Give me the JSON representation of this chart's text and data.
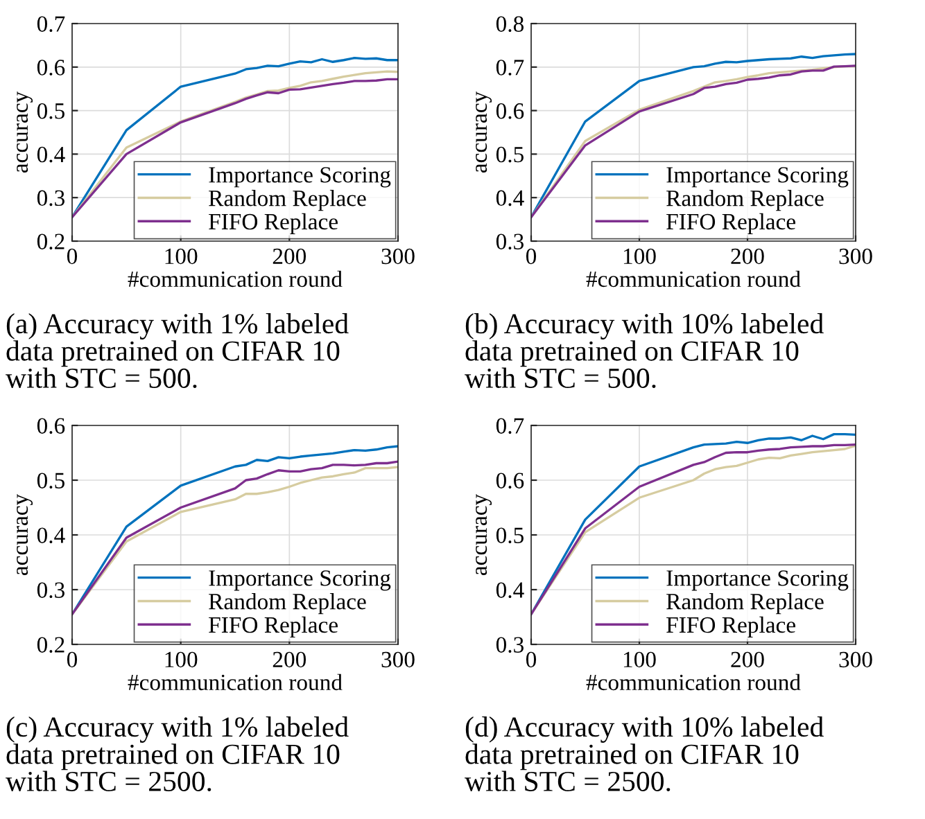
{
  "chart_data": [
    {
      "type": "line",
      "xlabel": "#communication round",
      "ylabel": "accuracy",
      "xlim": [
        0,
        300
      ],
      "ylim": [
        0.2,
        0.7
      ],
      "xticks": [
        0,
        100,
        200,
        300
      ],
      "yticks": [
        0.2,
        0.3,
        0.4,
        0.5,
        0.6,
        0.7
      ],
      "grid": true,
      "legend": "bottom right",
      "annotations": [
        "(a) Accuracy with 1% labeled\ndata pretrained on CIFAR 10\nwith STC = 500."
      ],
      "x": [
        0,
        50,
        100,
        150,
        160,
        170,
        180,
        190,
        200,
        210,
        220,
        230,
        240,
        250,
        260,
        270,
        280,
        290,
        300
      ],
      "series": [
        {
          "name": "Importance Scoring",
          "color": "#0072bd",
          "values": [
            0.255,
            0.455,
            0.555,
            0.585,
            0.595,
            0.598,
            0.603,
            0.602,
            0.608,
            0.613,
            0.611,
            0.618,
            0.612,
            0.616,
            0.621,
            0.619,
            0.62,
            0.616,
            0.616
          ]
        },
        {
          "name": "Random Replace",
          "color": "#d6cca0",
          "values": [
            0.255,
            0.415,
            0.475,
            0.52,
            0.53,
            0.537,
            0.545,
            0.546,
            0.552,
            0.557,
            0.565,
            0.568,
            0.573,
            0.578,
            0.582,
            0.586,
            0.588,
            0.59,
            0.589
          ]
        },
        {
          "name": "FIFO Replace",
          "color": "#7e2f8e",
          "values": [
            0.255,
            0.4,
            0.473,
            0.517,
            0.527,
            0.535,
            0.542,
            0.54,
            0.548,
            0.549,
            0.553,
            0.557,
            0.561,
            0.564,
            0.568,
            0.568,
            0.569,
            0.572,
            0.572
          ]
        }
      ]
    },
    {
      "type": "line",
      "xlabel": "#communication round",
      "ylabel": "accuracy",
      "xlim": [
        0,
        300
      ],
      "ylim": [
        0.3,
        0.8
      ],
      "xticks": [
        0,
        100,
        200,
        300
      ],
      "yticks": [
        0.3,
        0.4,
        0.5,
        0.6,
        0.7,
        0.8
      ],
      "grid": true,
      "legend": "bottom right",
      "annotations": [
        "(b) Accuracy with 10% labeled\ndata pretrained on CIFAR 10\nwith STC = 500."
      ],
      "x": [
        0,
        50,
        100,
        150,
        160,
        170,
        180,
        190,
        200,
        210,
        220,
        230,
        240,
        250,
        260,
        270,
        280,
        290,
        300
      ],
      "series": [
        {
          "name": "Importance Scoring",
          "color": "#0072bd",
          "values": [
            0.355,
            0.575,
            0.668,
            0.7,
            0.702,
            0.708,
            0.712,
            0.711,
            0.714,
            0.716,
            0.718,
            0.719,
            0.72,
            0.724,
            0.721,
            0.725,
            0.727,
            0.729,
            0.73
          ]
        },
        {
          "name": "Random Replace",
          "color": "#d6cca0",
          "values": [
            0.355,
            0.53,
            0.602,
            0.645,
            0.655,
            0.665,
            0.668,
            0.672,
            0.677,
            0.681,
            0.686,
            0.688,
            0.69,
            0.692,
            0.694,
            0.697,
            0.7,
            0.702,
            0.702
          ]
        },
        {
          "name": "FIFO Replace",
          "color": "#7e2f8e",
          "values": [
            0.355,
            0.52,
            0.598,
            0.638,
            0.652,
            0.655,
            0.661,
            0.664,
            0.671,
            0.673,
            0.676,
            0.681,
            0.683,
            0.69,
            0.692,
            0.692,
            0.701,
            0.702,
            0.703
          ]
        }
      ]
    },
    {
      "type": "line",
      "xlabel": "#communication round",
      "ylabel": "accuracy",
      "xlim": [
        0,
        300
      ],
      "ylim": [
        0.2,
        0.6
      ],
      "xticks": [
        0,
        100,
        200,
        300
      ],
      "yticks": [
        0.2,
        0.3,
        0.4,
        0.5,
        0.6
      ],
      "grid": true,
      "legend": "bottom right",
      "annotations": [
        "(c) Accuracy with 1% labeled\ndata pretrained on CIFAR 10\nwith STC = 2500."
      ],
      "x": [
        0,
        50,
        100,
        150,
        160,
        170,
        180,
        190,
        200,
        210,
        220,
        230,
        240,
        250,
        260,
        270,
        280,
        290,
        300
      ],
      "series": [
        {
          "name": "Importance Scoring",
          "color": "#0072bd",
          "values": [
            0.255,
            0.415,
            0.49,
            0.525,
            0.528,
            0.537,
            0.535,
            0.542,
            0.54,
            0.543,
            0.545,
            0.547,
            0.549,
            0.552,
            0.555,
            0.554,
            0.556,
            0.56,
            0.562
          ]
        },
        {
          "name": "Random Replace",
          "color": "#d6cca0",
          "values": [
            0.255,
            0.388,
            0.442,
            0.465,
            0.475,
            0.475,
            0.478,
            0.482,
            0.488,
            0.495,
            0.5,
            0.505,
            0.507,
            0.511,
            0.514,
            0.522,
            0.522,
            0.522,
            0.524
          ]
        },
        {
          "name": "FIFO Replace",
          "color": "#7e2f8e",
          "values": [
            0.255,
            0.395,
            0.45,
            0.485,
            0.5,
            0.503,
            0.511,
            0.518,
            0.516,
            0.516,
            0.52,
            0.522,
            0.528,
            0.528,
            0.527,
            0.528,
            0.531,
            0.531,
            0.534
          ]
        }
      ]
    },
    {
      "type": "line",
      "xlabel": "#communication round",
      "ylabel": "accuracy",
      "xlim": [
        0,
        300
      ],
      "ylim": [
        0.3,
        0.7
      ],
      "xticks": [
        0,
        100,
        200,
        300
      ],
      "yticks": [
        0.3,
        0.4,
        0.5,
        0.6,
        0.7
      ],
      "grid": true,
      "legend": "bottom right",
      "annotations": [
        "(d) Accuracy with 10% labeled\ndata pretrained on CIFAR 10\nwith STC = 2500."
      ],
      "x": [
        0,
        50,
        100,
        150,
        160,
        170,
        180,
        190,
        200,
        210,
        220,
        230,
        240,
        250,
        260,
        270,
        280,
        290,
        300
      ],
      "series": [
        {
          "name": "Importance Scoring",
          "color": "#0072bd",
          "values": [
            0.355,
            0.528,
            0.625,
            0.66,
            0.665,
            0.666,
            0.667,
            0.67,
            0.668,
            0.673,
            0.676,
            0.676,
            0.678,
            0.673,
            0.681,
            0.675,
            0.684,
            0.684,
            0.683
          ]
        },
        {
          "name": "Random Replace",
          "color": "#d6cca0",
          "values": [
            0.355,
            0.505,
            0.568,
            0.6,
            0.612,
            0.62,
            0.624,
            0.626,
            0.632,
            0.638,
            0.641,
            0.64,
            0.645,
            0.648,
            0.651,
            0.653,
            0.655,
            0.657,
            0.663
          ]
        },
        {
          "name": "FIFO Replace",
          "color": "#7e2f8e",
          "values": [
            0.355,
            0.512,
            0.588,
            0.628,
            0.633,
            0.642,
            0.65,
            0.651,
            0.651,
            0.654,
            0.656,
            0.657,
            0.66,
            0.661,
            0.662,
            0.662,
            0.664,
            0.664,
            0.665
          ]
        }
      ]
    }
  ]
}
